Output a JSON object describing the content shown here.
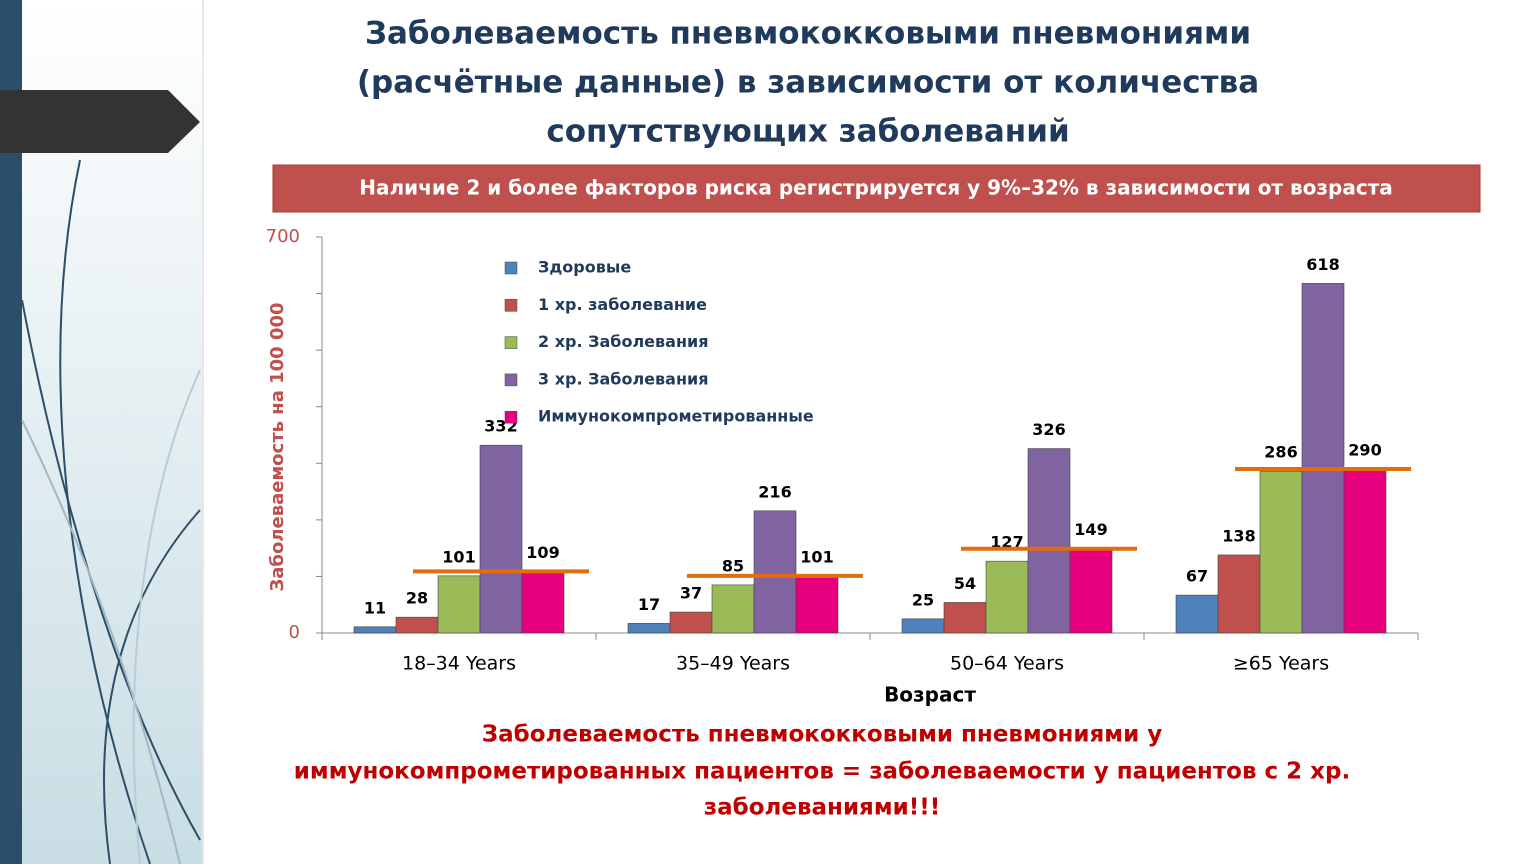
{
  "chart_data": {
    "type": "bar",
    "title": [
      "Заболеваемость пневмококковыми пневмониями",
      "(расчётные данные) в зависимости от количества",
      "сопутствующих заболеваний"
    ],
    "banner": "Наличие 2  и более факторов риска регистрируется у 9%–32% в зависимости от возраста",
    "y_label": "Заболеваемость на 100 000",
    "x_label": "Возраст",
    "categories": [
      "18–34 Years",
      "35–49 Years",
      "50–64 Years",
      "≥65 Years"
    ],
    "series": [
      {
        "name": "Здоровые",
        "color": "#4f81bd",
        "values": [
          11,
          17,
          25,
          67
        ]
      },
      {
        "name": "1 хр. заболевание",
        "color": "#c0504d",
        "values": [
          28,
          37,
          54,
          138
        ]
      },
      {
        "name": "2 хр. Заболевания",
        "color": "#9bbb59",
        "values": [
          101,
          85,
          127,
          286
        ]
      },
      {
        "name": "3 хр. Заболевания",
        "color": "#8064a2",
        "values": [
          332,
          216,
          326,
          618
        ]
      },
      {
        "name": "Иммунокомпрометированные",
        "color": "#e6007e",
        "values": [
          109,
          101,
          149,
          290
        ]
      }
    ],
    "reference_line_series": 4,
    "reference_line_color": "#e46c0a",
    "ylim": [
      0,
      700
    ],
    "yticks": [
      0,
      {
        "value": 100,
        "label": null
      },
      {
        "value": 200,
        "label": null
      },
      {
        "value": 300,
        "label": null
      },
      {
        "value": 400,
        "label": null
      },
      {
        "value": 500,
        "label": null
      },
      {
        "value": 600,
        "label": null
      },
      700
    ],
    "grid": false,
    "legend": "top-left",
    "note": [
      "Заболеваемость пневмококковыми пневмониями у",
      "иммунокомпрометированных пациентов = заболеваемости у пациентов с 2 хр.",
      "заболеваниями!!!"
    ]
  }
}
